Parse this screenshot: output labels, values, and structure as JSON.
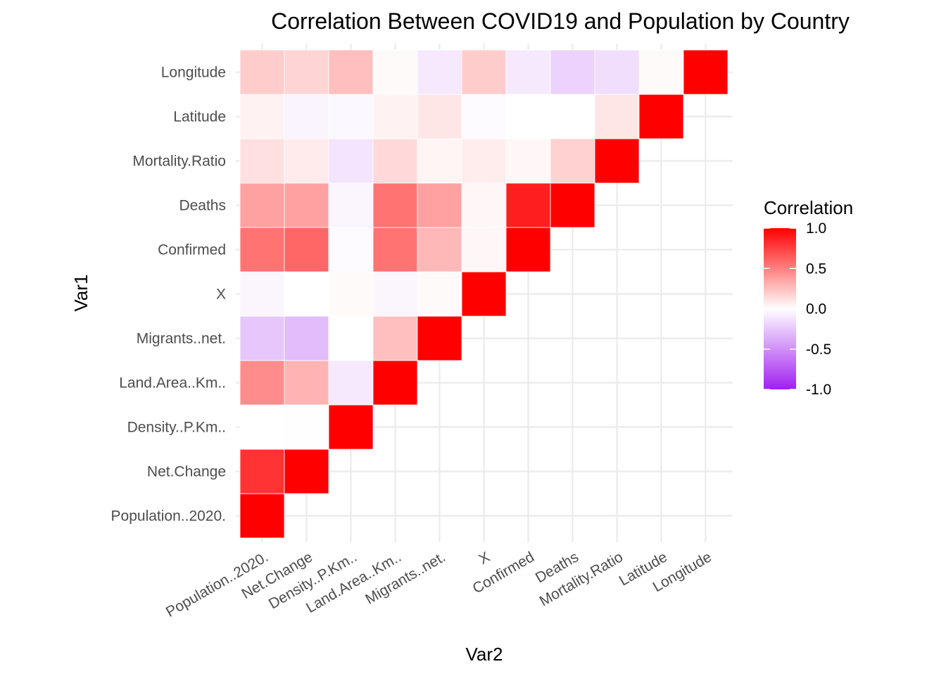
{
  "chart_data": {
    "type": "heatmap",
    "title": "Correlation  Between COVID19 and Population by Country",
    "xlabel": "Var2",
    "ylabel": "Var1",
    "variables": [
      "Population..2020.",
      "Net.Change",
      "Density..P.Km..",
      "Land.Area..Km..",
      "Migrants..net.",
      "X",
      "Confirmed",
      "Deaths",
      "Mortality.Ratio",
      "Latitude",
      "Longitude"
    ],
    "matrix_lower_triangle": [
      [
        1.0
      ],
      [
        0.8,
        1.0
      ],
      [
        0.0,
        -0.01,
        1.0
      ],
      [
        0.45,
        0.3,
        -0.1,
        1.0
      ],
      [
        -0.25,
        -0.3,
        0.0,
        0.25,
        1.0
      ],
      [
        -0.04,
        0.0,
        0.02,
        -0.04,
        0.02,
        1.0
      ],
      [
        0.55,
        0.6,
        -0.02,
        0.55,
        0.28,
        0.03,
        1.0
      ],
      [
        0.37,
        0.37,
        -0.04,
        0.55,
        0.37,
        0.03,
        0.88,
        1.0
      ],
      [
        0.12,
        0.08,
        -0.12,
        0.15,
        0.04,
        0.07,
        0.03,
        0.18,
        1.0
      ],
      [
        0.05,
        -0.05,
        -0.03,
        0.05,
        0.1,
        -0.02,
        0.0,
        0.0,
        0.1,
        1.0
      ],
      [
        0.2,
        0.17,
        0.25,
        0.02,
        -0.1,
        0.2,
        -0.1,
        -0.2,
        -0.15,
        0.02,
        1.0
      ]
    ],
    "color_scale": {
      "low": "#a020f0",
      "mid": "#ffffff",
      "high": "#ff0000",
      "limits": [
        -1,
        1
      ]
    },
    "legend": {
      "title": "Correlation",
      "breaks": [
        1.0,
        0.5,
        0.0,
        -0.5,
        -1.0
      ],
      "labels": [
        "1.0",
        "0.5",
        "0.0",
        "-0.5",
        "-1.0"
      ],
      "position": "right"
    },
    "grid": true
  }
}
